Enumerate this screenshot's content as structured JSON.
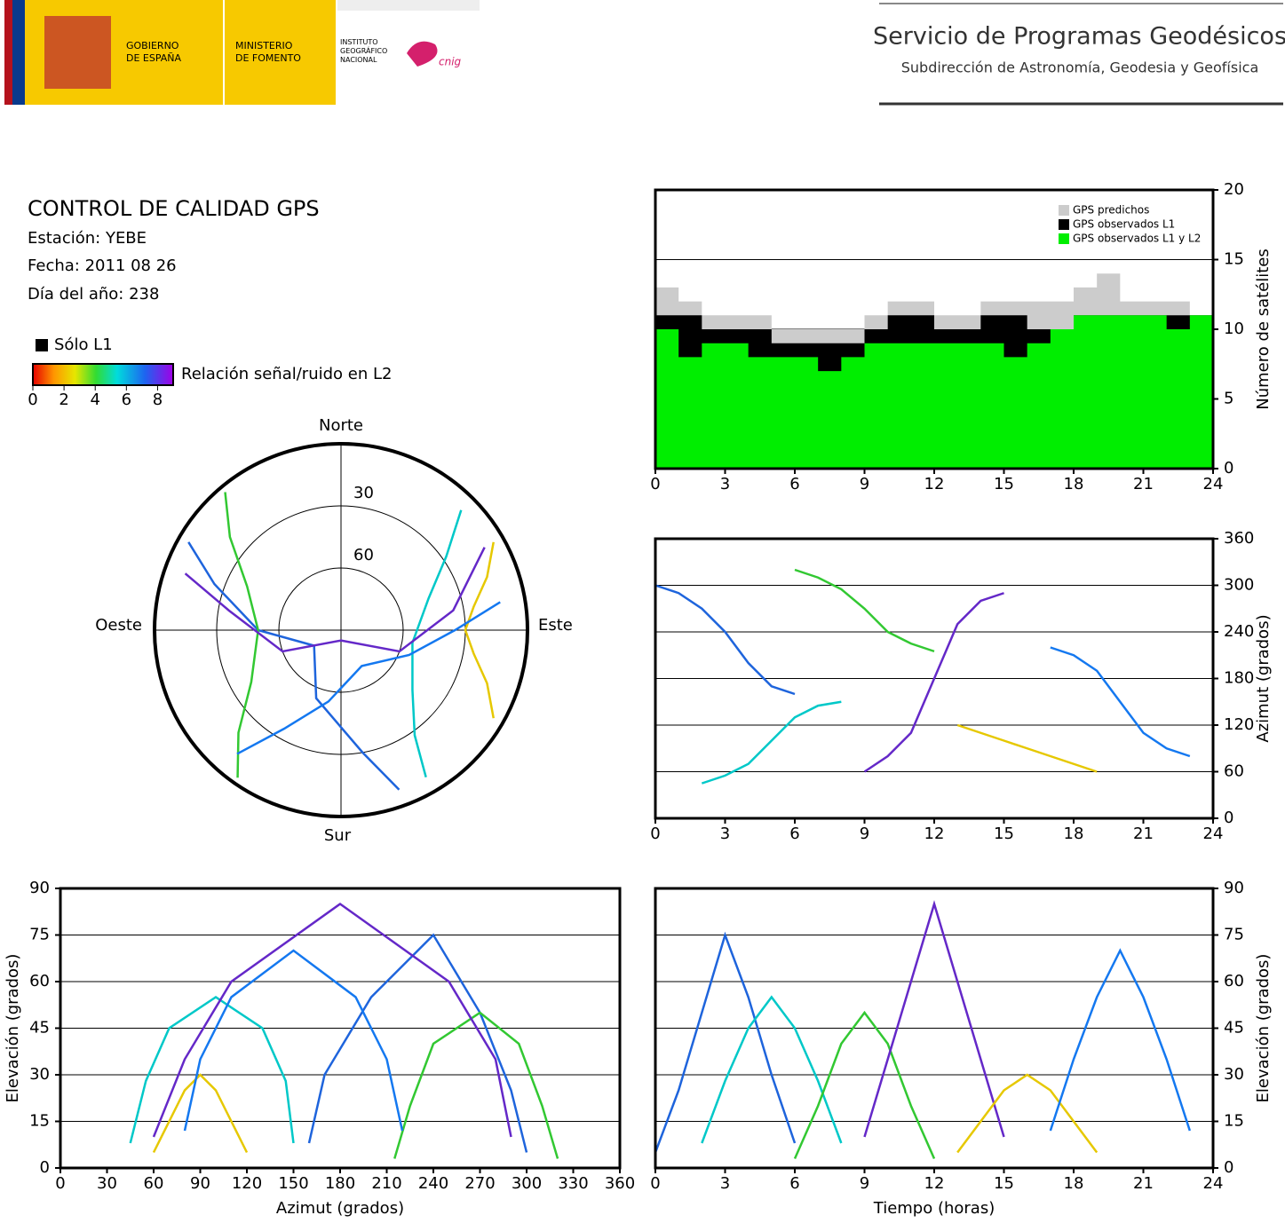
{
  "header": {
    "gov": [
      "GOBIERNO",
      "DE ESPAÑA"
    ],
    "ministry": [
      "MINISTERIO",
      "DE FOMENTO"
    ],
    "institute": [
      "INSTITUTO",
      "GEOGRÁFICO",
      "NACIONAL"
    ],
    "logo": "cnig",
    "service": "Servicio de Programas Geodésicos",
    "subservice": "Subdirección de Astronomía, Geodesia y Geofísica"
  },
  "info": {
    "title": "CONTROL DE CALIDAD GPS",
    "station": "Estación: YEBE",
    "date": "Fecha: 2011 08 26",
    "doy": "Día del año: 238"
  },
  "legend": {
    "l1_only": "Sólo L1",
    "snr_label": "Relación señal/ruido en L2",
    "snr_lim": [
      0,
      9
    ],
    "snr_ticks": [
      0,
      2,
      4,
      6,
      8
    ]
  },
  "chart_data": [
    {
      "type": "step-area",
      "ylabel": "Número de satélites",
      "yaxis": "right",
      "x": [
        0,
        1,
        2,
        3,
        4,
        5,
        6,
        7,
        8,
        9,
        10,
        11,
        12,
        13,
        14,
        15,
        16,
        17,
        18,
        19,
        20,
        21,
        22,
        23,
        24
      ],
      "xlim": [
        0,
        24
      ],
      "xticks": [
        0,
        3,
        6,
        9,
        12,
        15,
        18,
        21,
        24
      ],
      "ylim": [
        0,
        20
      ],
      "yticks": [
        0,
        5,
        10,
        15,
        20
      ],
      "grid": true,
      "series": [
        {
          "name": "GPS predichos",
          "color": "#cccccc",
          "values": [
            13,
            12,
            11,
            11,
            11,
            10,
            10,
            10,
            10,
            11,
            12,
            12,
            11,
            11,
            12,
            12,
            12,
            12,
            13,
            14,
            12,
            12,
            12,
            11,
            11
          ]
        },
        {
          "name": "GPS observados L1",
          "color": "#000000",
          "values": [
            11,
            11,
            10,
            10,
            10,
            9,
            9,
            9,
            9,
            10,
            11,
            11,
            10,
            10,
            11,
            11,
            10,
            10,
            11,
            11,
            11,
            11,
            11,
            11,
            11
          ]
        },
        {
          "name": "GPS observados L1 y L2",
          "color": "#00ee00",
          "values": [
            10,
            8,
            9,
            9,
            8,
            8,
            8,
            7,
            8,
            9,
            9,
            9,
            9,
            9,
            9,
            8,
            9,
            10,
            11,
            11,
            11,
            11,
            10,
            11,
            11
          ]
        }
      ]
    },
    {
      "type": "line",
      "ylabel": "Azimut (grados)",
      "yaxis": "right",
      "xlim": [
        0,
        24
      ],
      "xticks": [
        0,
        3,
        6,
        9,
        12,
        15,
        18,
        21,
        24
      ],
      "ylim": [
        0,
        360
      ],
      "yticks": [
        0,
        60,
        120,
        180,
        240,
        300,
        360
      ],
      "grid": true,
      "series": [
        {
          "color": "#1e64dc",
          "x": [
            0,
            1,
            2,
            3,
            4,
            5,
            6
          ],
          "values": [
            300,
            290,
            270,
            240,
            200,
            170,
            160
          ]
        },
        {
          "color": "#00c8c8",
          "x": [
            2,
            3,
            4,
            5,
            6,
            7,
            8
          ],
          "values": [
            45,
            55,
            70,
            100,
            130,
            145,
            150
          ]
        },
        {
          "color": "#32c832",
          "x": [
            6,
            7,
            8,
            9,
            10,
            11,
            12
          ],
          "values": [
            320,
            310,
            295,
            270,
            240,
            225,
            215
          ]
        },
        {
          "color": "#6428c8",
          "x": [
            9,
            10,
            11,
            12,
            13,
            14,
            15
          ],
          "values": [
            60,
            80,
            110,
            180,
            250,
            280,
            290
          ]
        },
        {
          "color": "#e6c800",
          "x": [
            13,
            14,
            15,
            16,
            17,
            18,
            19
          ],
          "values": [
            120,
            110,
            100,
            90,
            80,
            70,
            60
          ]
        },
        {
          "color": "#1478f0",
          "x": [
            17,
            18,
            19,
            20,
            21,
            22,
            23
          ],
          "values": [
            220,
            210,
            190,
            150,
            110,
            90,
            80
          ]
        }
      ]
    },
    {
      "type": "line",
      "xlabel": "Azimut (grados)",
      "ylabel": "Elevación (grados)",
      "yaxis": "left",
      "xlim": [
        0,
        360
      ],
      "xticks": [
        0,
        30,
        60,
        90,
        120,
        150,
        180,
        210,
        240,
        270,
        300,
        330,
        360
      ],
      "ylim": [
        0,
        90
      ],
      "yticks": [
        0,
        15,
        30,
        45,
        60,
        75,
        90
      ],
      "grid": true,
      "series": [
        {
          "color": "#1e64dc",
          "x": [
            300,
            290,
            270,
            240,
            200,
            170,
            160
          ],
          "values": [
            5,
            25,
            50,
            75,
            55,
            30,
            8
          ]
        },
        {
          "color": "#00c8c8",
          "x": [
            45,
            55,
            70,
            100,
            130,
            145,
            150
          ],
          "values": [
            8,
            28,
            45,
            55,
            45,
            28,
            8
          ]
        },
        {
          "color": "#32c832",
          "x": [
            320,
            310,
            295,
            270,
            240,
            225,
            215
          ],
          "values": [
            3,
            20,
            40,
            50,
            40,
            20,
            3
          ]
        },
        {
          "color": "#6428c8",
          "x": [
            60,
            80,
            110,
            180,
            250,
            280,
            290
          ],
          "values": [
            10,
            35,
            60,
            85,
            60,
            35,
            10
          ]
        },
        {
          "color": "#e6c800",
          "x": [
            120,
            110,
            100,
            90,
            80,
            70,
            60
          ],
          "values": [
            5,
            15,
            25,
            30,
            25,
            15,
            5
          ]
        },
        {
          "color": "#1478f0",
          "x": [
            220,
            210,
            190,
            150,
            110,
            90,
            80
          ],
          "values": [
            12,
            35,
            55,
            70,
            55,
            35,
            12
          ]
        }
      ]
    },
    {
      "type": "line",
      "xlabel": "Tiempo (horas)",
      "ylabel": "Elevación (grados)",
      "yaxis": "right",
      "xlim": [
        0,
        24
      ],
      "xticks": [
        0,
        3,
        6,
        9,
        12,
        15,
        18,
        21,
        24
      ],
      "ylim": [
        0,
        90
      ],
      "yticks": [
        0,
        15,
        30,
        45,
        60,
        75,
        90
      ],
      "grid": true,
      "series": [
        {
          "color": "#1e64dc",
          "x": [
            0,
            1,
            2,
            3,
            4,
            5,
            6
          ],
          "values": [
            5,
            25,
            50,
            75,
            55,
            30,
            8
          ]
        },
        {
          "color": "#00c8c8",
          "x": [
            2,
            3,
            4,
            5,
            6,
            7,
            8
          ],
          "values": [
            8,
            28,
            45,
            55,
            45,
            28,
            8
          ]
        },
        {
          "color": "#32c832",
          "x": [
            6,
            7,
            8,
            9,
            10,
            11,
            12
          ],
          "values": [
            3,
            20,
            40,
            50,
            40,
            20,
            3
          ]
        },
        {
          "color": "#6428c8",
          "x": [
            9,
            10,
            11,
            12,
            13,
            14,
            15
          ],
          "values": [
            10,
            35,
            60,
            85,
            60,
            35,
            10
          ]
        },
        {
          "color": "#e6c800",
          "x": [
            13,
            14,
            15,
            16,
            17,
            18,
            19
          ],
          "values": [
            5,
            15,
            25,
            30,
            25,
            15,
            5
          ]
        },
        {
          "color": "#1478f0",
          "x": [
            17,
            18,
            19,
            20,
            21,
            22,
            23
          ],
          "values": [
            12,
            35,
            55,
            70,
            55,
            35,
            12
          ]
        }
      ]
    },
    {
      "type": "polar",
      "north": "Norte",
      "south": "Sur",
      "east": "Este",
      "west": "Oeste",
      "rlim": [
        90,
        0
      ],
      "rticks": [
        30,
        60
      ],
      "series": [
        {
          "color": "#1e64dc",
          "x": [
            300,
            290,
            270,
            240,
            200,
            170,
            160
          ],
          "values": [
            5,
            25,
            50,
            75,
            55,
            30,
            8
          ]
        },
        {
          "color": "#00c8c8",
          "x": [
            45,
            55,
            70,
            100,
            130,
            145,
            150
          ],
          "values": [
            8,
            28,
            45,
            55,
            45,
            28,
            8
          ]
        },
        {
          "color": "#32c832",
          "x": [
            320,
            310,
            295,
            270,
            240,
            225,
            215
          ],
          "values": [
            3,
            20,
            40,
            50,
            40,
            20,
            3
          ]
        },
        {
          "color": "#6428c8",
          "x": [
            60,
            80,
            110,
            180,
            250,
            280,
            290
          ],
          "values": [
            10,
            35,
            60,
            85,
            60,
            35,
            10
          ]
        },
        {
          "color": "#e6c800",
          "x": [
            120,
            110,
            100,
            90,
            80,
            70,
            60
          ],
          "values": [
            5,
            15,
            25,
            30,
            25,
            15,
            5
          ]
        },
        {
          "color": "#1478f0",
          "x": [
            220,
            210,
            190,
            150,
            110,
            90,
            80
          ],
          "values": [
            12,
            35,
            55,
            70,
            55,
            35,
            12
          ]
        }
      ]
    }
  ]
}
